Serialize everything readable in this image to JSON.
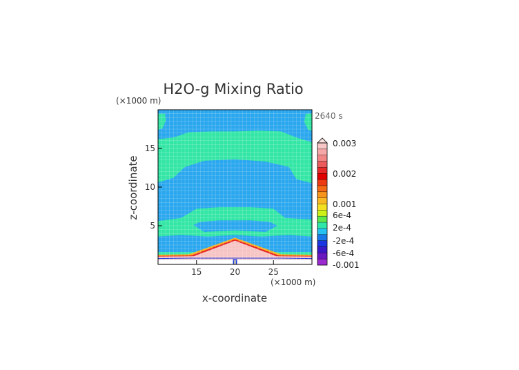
{
  "chart_data": {
    "type": "contour",
    "title": "H2O-g Mixing Ratio",
    "time_label": "2640 s",
    "xlabel": "x-coordinate",
    "ylabel": "z-coordinate",
    "x_unit": "(×1000 m)",
    "y_unit": "(×1000 m)",
    "xlim": [
      10,
      30
    ],
    "ylim": [
      0,
      20
    ],
    "x_ticks": [
      15,
      20,
      25
    ],
    "y_ticks": [
      5,
      10,
      15
    ],
    "grid": true,
    "colorbar": {
      "labels": [
        "0.003",
        "0.002",
        "0.001",
        "6e-4",
        "2e-4",
        "-2e-4",
        "-6e-4",
        "-0.001"
      ],
      "colors": [
        "#f9c6c6",
        "#f7a7a7",
        "#f28585",
        "#ec5b5b",
        "#e62a2a",
        "#e00000",
        "#ee3a10",
        "#f46a14",
        "#f7941c",
        "#f9b923",
        "#f3e021",
        "#ccf018",
        "#5ee84c",
        "#2ee6a7",
        "#26c1f0",
        "#1978e8",
        "#1b36e0",
        "#3a18c8",
        "#6a18c0",
        "#9b2bd0"
      ],
      "extend": "max"
    }
  }
}
